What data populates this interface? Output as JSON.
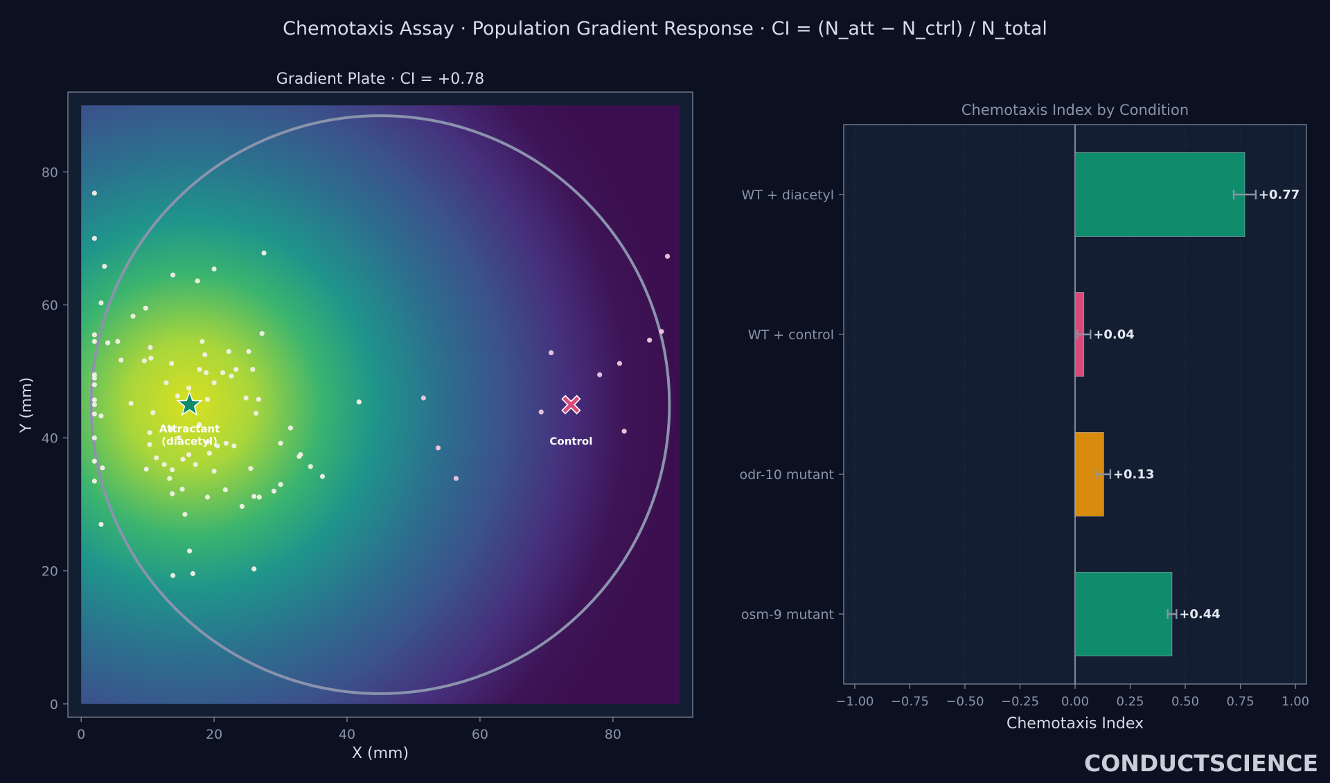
{
  "figure": {
    "suptitle": "Chemotaxis Assay · Population Gradient Response · CI = (N_att − N_ctrl) / N_total",
    "brand": "CONDUCTSCIENCE",
    "colors": {
      "background": "#0b1121",
      "panel": "#141e33",
      "text": "#d6dbe6",
      "muted": "#8a93a8",
      "spine": "#7c8598"
    }
  },
  "chart_data": [
    {
      "type": "scatter",
      "title": "Gradient Plate · CI = +0.78",
      "xlabel": "X (mm)",
      "ylabel": "Y (mm)",
      "xlim": [
        -2,
        92
      ],
      "ylim": [
        -2,
        92
      ],
      "xticks": [
        0,
        20,
        40,
        60,
        80
      ],
      "yticks": [
        0,
        20,
        40,
        60,
        80
      ],
      "grid": false,
      "colormap": "viridis",
      "plate": {
        "cx": 45,
        "cy": 45,
        "r": 43.5,
        "color": "#8a93ad"
      },
      "attractant": {
        "x": 16.3,
        "y": 45,
        "label": "Attractant\n(diacetyl)",
        "color": "#0e8c6c",
        "marker": "star"
      },
      "control": {
        "x": 73.7,
        "y": 45,
        "label": "Control",
        "color": "#d94a7a",
        "marker": "cross"
      },
      "points": [
        [
          2,
          76.8
        ],
        [
          2,
          70
        ],
        [
          3.5,
          65.8
        ],
        [
          3,
          60.3
        ],
        [
          2,
          55.5
        ],
        [
          2,
          54.5
        ],
        [
          4,
          54.3
        ],
        [
          5.5,
          54.5
        ],
        [
          6,
          51.7
        ],
        [
          7.8,
          58.3
        ],
        [
          9.7,
          59.5
        ],
        [
          13.8,
          64.5
        ],
        [
          17.5,
          63.6
        ],
        [
          20,
          65.4
        ],
        [
          27.5,
          67.8
        ],
        [
          2,
          49.5
        ],
        [
          2,
          49
        ],
        [
          2,
          48
        ],
        [
          2,
          45.7
        ],
        [
          2,
          45
        ],
        [
          2,
          43.6
        ],
        [
          3,
          43.3
        ],
        [
          2,
          40
        ],
        [
          2,
          36.5
        ],
        [
          3.2,
          35.5
        ],
        [
          2,
          33.5
        ],
        [
          3,
          27
        ],
        [
          7.5,
          45.2
        ],
        [
          9.5,
          51.6
        ],
        [
          10.4,
          53.6
        ],
        [
          10.5,
          52
        ],
        [
          13.6,
          51.2
        ],
        [
          12.8,
          48.3
        ],
        [
          14.5,
          46.3
        ],
        [
          16,
          44.8
        ],
        [
          16.2,
          47.5
        ],
        [
          17.8,
          42
        ],
        [
          18.2,
          54.5
        ],
        [
          18.6,
          52.5
        ],
        [
          18.8,
          49.8
        ],
        [
          17.8,
          50.3
        ],
        [
          19,
          45.8
        ],
        [
          20,
          48.3
        ],
        [
          21.3,
          49.8
        ],
        [
          22.6,
          49.3
        ],
        [
          22.2,
          53
        ],
        [
          23.3,
          50.3
        ],
        [
          25.2,
          53
        ],
        [
          25.8,
          50.3
        ],
        [
          27.2,
          55.7
        ],
        [
          24.8,
          46
        ],
        [
          26.7,
          45.8
        ],
        [
          26.3,
          43.7
        ],
        [
          10.8,
          43.8
        ],
        [
          10.3,
          40.8
        ],
        [
          10.3,
          39
        ],
        [
          11.3,
          37
        ],
        [
          9.8,
          35.3
        ],
        [
          12.5,
          36
        ],
        [
          13.7,
          35.2
        ],
        [
          15.3,
          36.8
        ],
        [
          14.7,
          40
        ],
        [
          13.5,
          41.3
        ],
        [
          16.2,
          37.5
        ],
        [
          17.2,
          36
        ],
        [
          19,
          39.4
        ],
        [
          19.3,
          37.7
        ],
        [
          20.5,
          38.8
        ],
        [
          20,
          35
        ],
        [
          21.8,
          39.2
        ],
        [
          23,
          38.8
        ],
        [
          25.5,
          35.4
        ],
        [
          13.3,
          33.9
        ],
        [
          15.2,
          32.3
        ],
        [
          13.7,
          31.6
        ],
        [
          19,
          31.1
        ],
        [
          21.7,
          32.2
        ],
        [
          15.6,
          28.5
        ],
        [
          24.2,
          29.7
        ],
        [
          26,
          31.2
        ],
        [
          26.8,
          31.1
        ],
        [
          29,
          32
        ],
        [
          30,
          33
        ],
        [
          30,
          39.2
        ],
        [
          32.8,
          37.2
        ],
        [
          33,
          37.5
        ],
        [
          31.5,
          41.5
        ],
        [
          34.5,
          35.7
        ],
        [
          36.3,
          34.2
        ],
        [
          16.3,
          23
        ],
        [
          13.8,
          19.3
        ],
        [
          16.8,
          19.6
        ],
        [
          26,
          20.3
        ],
        [
          41.8,
          45.4
        ],
        [
          51.5,
          46
        ],
        [
          53.7,
          38.5
        ],
        [
          56.4,
          33.9
        ],
        [
          70.7,
          52.8
        ],
        [
          69.2,
          43.9
        ],
        [
          78,
          49.5
        ],
        [
          81,
          51.2
        ],
        [
          81.7,
          41
        ],
        [
          85.5,
          54.7
        ],
        [
          87.3,
          56
        ],
        [
          88.2,
          67.3
        ]
      ]
    },
    {
      "type": "bar",
      "orientation": "horizontal",
      "title": "Chemotaxis Index by Condition",
      "xlabel": "Chemotaxis Index",
      "ylabel": "",
      "xlim": [
        -1.05,
        1.05
      ],
      "xticks": [
        -1.0,
        -0.75,
        -0.5,
        -0.25,
        0.0,
        0.25,
        0.5,
        0.75,
        1.0
      ],
      "grid": true,
      "categories": [
        "WT + diacetyl",
        "WT + control",
        "odr-10 mutant",
        "osm-9 mutant"
      ],
      "values": [
        0.77,
        0.04,
        0.13,
        0.44
      ],
      "errors": [
        0.05,
        0.03,
        0.03,
        0.02
      ],
      "value_labels": [
        "+0.77",
        "+0.04",
        "+0.13",
        "+0.44"
      ],
      "colors": [
        "#0e8c6c",
        "#d94a7a",
        "#d98b0e",
        "#0e8c6c"
      ]
    }
  ]
}
